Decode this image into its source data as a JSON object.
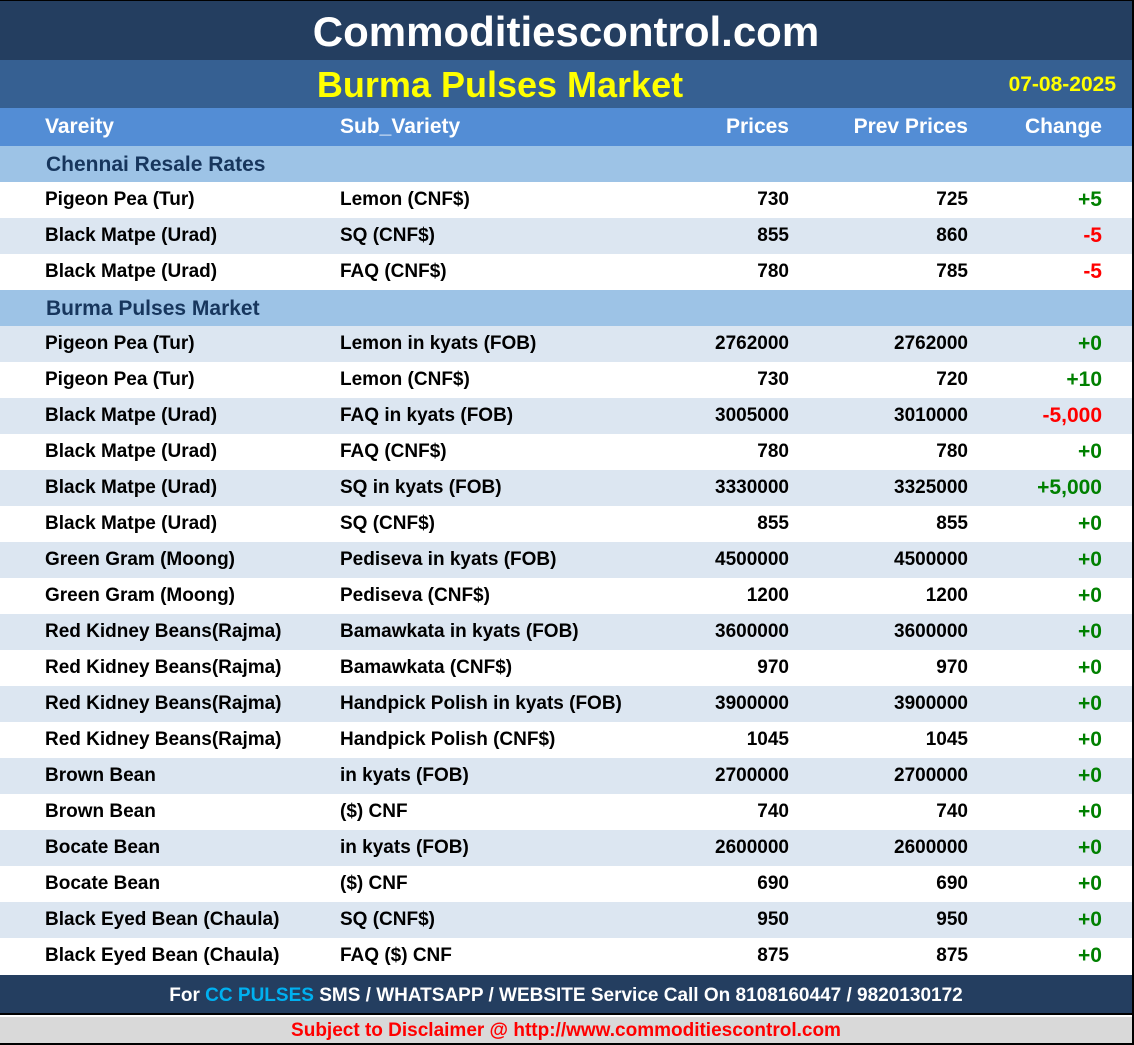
{
  "site_title": "Commoditiescontrol.com",
  "market_title": "Burma Pulses Market",
  "date": "07-08-2025",
  "columns": [
    "Vareity",
    "Sub_Variety",
    "Prices",
    "Prev Prices",
    "Change"
  ],
  "colors": {
    "title_bg": "#243e60",
    "subtitle_bg": "#366092",
    "header_bg": "#538dd5",
    "section_bg": "#9dc3e6",
    "alt_row": "#dce6f1",
    "positive": "#008000",
    "negative": "#ff0000",
    "title_text": "#ffff00"
  },
  "sections": [
    {
      "name": "Chennai Resale Rates",
      "start_alt": false,
      "rows": [
        [
          "Pigeon Pea (Tur)",
          "Lemon (CNF$)",
          "730",
          "725",
          "+5"
        ],
        [
          "Black Matpe (Urad)",
          "SQ (CNF$)",
          "855",
          "860",
          "-5"
        ],
        [
          "Black Matpe (Urad)",
          "FAQ (CNF$)",
          "780",
          "785",
          "-5"
        ]
      ]
    },
    {
      "name": "Burma Pulses Market",
      "start_alt": true,
      "rows": [
        [
          "Pigeon Pea (Tur)",
          "Lemon in kyats (FOB)",
          "2762000",
          "2762000",
          "+0"
        ],
        [
          "Pigeon Pea (Tur)",
          "Lemon (CNF$)",
          "730",
          "720",
          "+10"
        ],
        [
          "Black Matpe (Urad)",
          "FAQ in kyats (FOB)",
          "3005000",
          "3010000",
          "-5,000"
        ],
        [
          "Black Matpe (Urad)",
          "FAQ (CNF$)",
          "780",
          "780",
          "+0"
        ],
        [
          "Black Matpe (Urad)",
          "SQ in kyats (FOB)",
          "3330000",
          "3325000",
          "+5,000"
        ],
        [
          "Black Matpe (Urad)",
          "SQ (CNF$)",
          "855",
          "855",
          "+0"
        ],
        [
          "Green Gram (Moong)",
          "Pediseva in kyats (FOB)",
          "4500000",
          "4500000",
          "+0"
        ],
        [
          "Green Gram (Moong)",
          "Pediseva (CNF$)",
          "1200",
          "1200",
          "+0"
        ],
        [
          "Red Kidney Beans(Rajma)",
          "Bamawkata in kyats (FOB)",
          "3600000",
          "3600000",
          "+0"
        ],
        [
          "Red Kidney Beans(Rajma)",
          "Bamawkata (CNF$)",
          "970",
          "970",
          "+0"
        ],
        [
          "Red Kidney Beans(Rajma)",
          "Handpick Polish in kyats (FOB)",
          "3900000",
          "3900000",
          "+0"
        ],
        [
          "Red Kidney Beans(Rajma)",
          "Handpick Polish (CNF$)",
          "1045",
          "1045",
          "+0"
        ],
        [
          "Brown Bean",
          "in kyats (FOB)",
          "2700000",
          "2700000",
          "+0"
        ],
        [
          "Brown Bean",
          "($) CNF",
          "740",
          "740",
          "+0"
        ],
        [
          "Bocate Bean",
          "in kyats (FOB)",
          "2600000",
          "2600000",
          "+0"
        ],
        [
          "Bocate Bean",
          "($) CNF",
          "690",
          "690",
          "+0"
        ],
        [
          "Black Eyed Bean (Chaula)",
          "SQ (CNF$)",
          "950",
          "950",
          "+0"
        ],
        [
          "Black Eyed Bean (Chaula)",
          "FAQ ($) CNF",
          "875",
          "875",
          "+0"
        ]
      ]
    }
  ],
  "footer": {
    "pre": "For ",
    "highlight": "CC PULSES",
    "post": " SMS / WHATSAPP / WEBSITE Service Call On 8108160447 / 9820130172"
  },
  "disclaimer": "Subject to Disclaimer @  http://www.commoditiescontrol.com"
}
